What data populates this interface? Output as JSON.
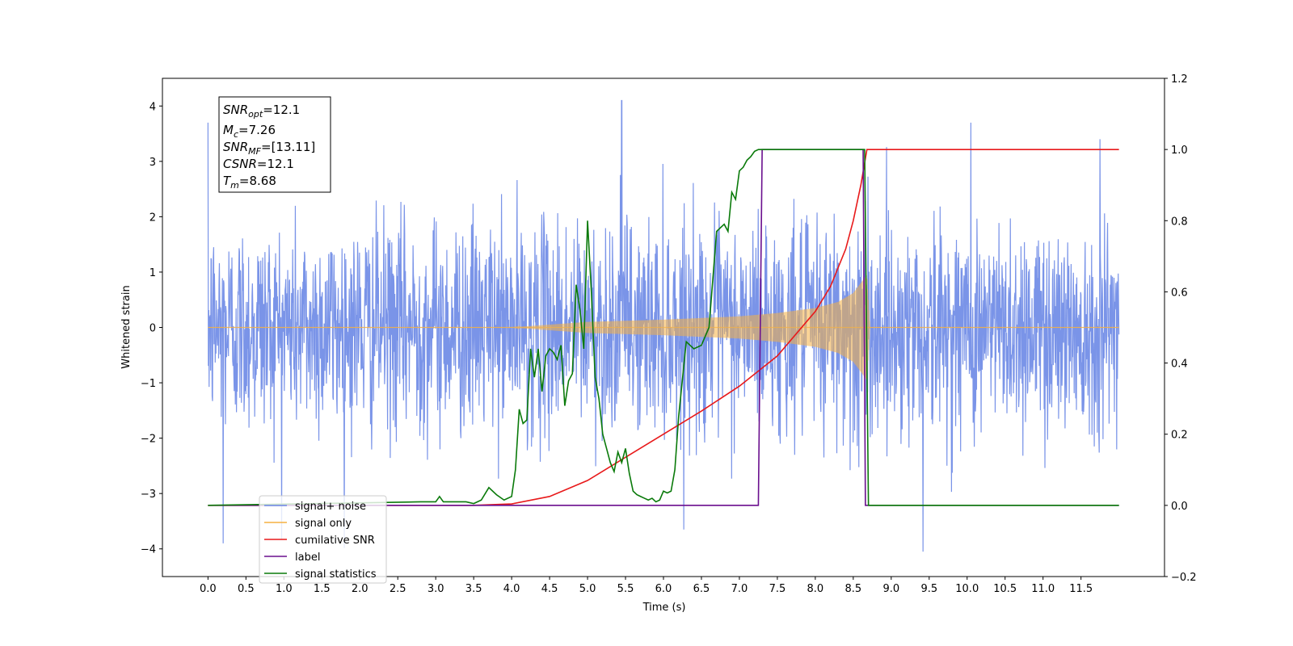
{
  "chart_data": {
    "type": "line",
    "xlabel": "Time (s)",
    "ylabel": "Whitened strain",
    "ylabel_right": "",
    "xlim": [
      -0.6,
      12.6
    ],
    "ylim": [
      -4.5,
      4.5
    ],
    "ylim_right": [
      -0.2,
      1.2
    ],
    "x_ticks": [
      "0.0",
      "0.5",
      "1.0",
      "1.5",
      "2.0",
      "2.5",
      "3.0",
      "3.5",
      "4.0",
      "4.5",
      "5.0",
      "5.5",
      "6.0",
      "6.5",
      "7.0",
      "7.5",
      "8.0",
      "8.5",
      "9.0",
      "9.5",
      "10.0",
      "10.5",
      "11.0",
      "11.5"
    ],
    "y_ticks_left": [
      "−4",
      "−3",
      "−2",
      "−1",
      "0",
      "1",
      "2",
      "3",
      "4"
    ],
    "y_ticks_right": [
      "−0.2",
      "0.0",
      "0.2",
      "0.4",
      "0.6",
      "0.8",
      "1.0",
      "1.2"
    ],
    "grid": false,
    "legend_position": "lower-left",
    "annotation": [
      {
        "main": "SNR",
        "sub": "opt",
        "rest": "=12.1"
      },
      {
        "main": "M",
        "sub": "c",
        "rest": "=7.26"
      },
      {
        "main": "SNR",
        "sub": "MF",
        "rest": "=[13.11]"
      },
      {
        "main": "CSNR",
        "sub": "",
        "rest": "=12.1"
      },
      {
        "main": "T",
        "sub": "m",
        "rest": "=8.68"
      }
    ],
    "series": [
      {
        "name": "signal+ noise",
        "color": "#6b88e6",
        "axis": "left",
        "description": "whitened noise with injected chirp, 0.0–12.0 s",
        "noise_amplitude_range": [
          -2.5,
          2.5
        ],
        "notable_peaks": [
          [
            0.0,
            3.7
          ],
          [
            0.2,
            -3.9
          ],
          [
            5.45,
            4.1
          ],
          [
            10.05,
            3.7
          ],
          [
            9.42,
            -4.05
          ],
          [
            11.75,
            3.4
          ]
        ]
      },
      {
        "name": "signal only",
        "color": "#f5b041",
        "axis": "left",
        "chirp_start": 4.0,
        "merger_time": 8.68,
        "envelope": [
          [
            4.0,
            0.0
          ],
          [
            5.0,
            0.1
          ],
          [
            6.0,
            0.14
          ],
          [
            7.0,
            0.2
          ],
          [
            7.5,
            0.26
          ],
          [
            8.0,
            0.35
          ],
          [
            8.3,
            0.46
          ],
          [
            8.5,
            0.62
          ],
          [
            8.6,
            0.8
          ],
          [
            8.68,
            0.95
          ],
          [
            8.72,
            0.0
          ]
        ]
      },
      {
        "name": "cumilative SNR",
        "color": "#e8191a",
        "axis": "right",
        "x": [
          0.0,
          3.5,
          4.0,
          4.5,
          5.0,
          5.5,
          6.0,
          6.5,
          7.0,
          7.5,
          8.0,
          8.2,
          8.4,
          8.5,
          8.6,
          8.68,
          9.0,
          10.0,
          11.0,
          12.0
        ],
        "y": [
          0.0,
          0.0,
          0.004,
          0.025,
          0.07,
          0.135,
          0.2,
          0.265,
          0.335,
          0.42,
          0.545,
          0.615,
          0.72,
          0.8,
          0.9,
          1.0,
          1.0,
          1.0,
          1.0,
          1.0
        ]
      },
      {
        "name": "label",
        "color": "#6a0f8e",
        "axis": "right",
        "x": [
          0.0,
          7.25,
          7.3,
          8.63,
          8.66,
          12.0
        ],
        "y": [
          0.0,
          0.0,
          1.0,
          1.0,
          0.0,
          0.0
        ]
      },
      {
        "name": "signal statistics",
        "color": "#0a7a0a",
        "axis": "right",
        "x": [
          0.0,
          2.8,
          2.9,
          3.0,
          3.05,
          3.1,
          3.3,
          3.4,
          3.5,
          3.6,
          3.7,
          3.8,
          3.9,
          4.0,
          4.05,
          4.1,
          4.15,
          4.2,
          4.25,
          4.3,
          4.35,
          4.4,
          4.45,
          4.5,
          4.55,
          4.6,
          4.65,
          4.7,
          4.75,
          4.8,
          4.85,
          4.9,
          4.95,
          5.0,
          5.05,
          5.1,
          5.15,
          5.2,
          5.25,
          5.3,
          5.35,
          5.4,
          5.45,
          5.5,
          5.55,
          5.6,
          5.65,
          5.7,
          5.75,
          5.8,
          5.85,
          5.9,
          5.95,
          6.0,
          6.05,
          6.1,
          6.15,
          6.2,
          6.3,
          6.4,
          6.5,
          6.6,
          6.7,
          6.8,
          6.85,
          6.9,
          6.95,
          7.0,
          7.05,
          7.1,
          7.15,
          7.2,
          7.25,
          7.3,
          7.35,
          7.4,
          7.45,
          7.5,
          7.55,
          7.6,
          7.65,
          7.7,
          7.8,
          8.0,
          8.3,
          8.6,
          8.65,
          8.7,
          8.75,
          12.0
        ],
        "y": [
          0.0,
          0.01,
          0.01,
          0.01,
          0.025,
          0.01,
          0.01,
          0.01,
          0.005,
          0.015,
          0.05,
          0.03,
          0.015,
          0.025,
          0.1,
          0.27,
          0.23,
          0.24,
          0.44,
          0.36,
          0.44,
          0.32,
          0.42,
          0.44,
          0.43,
          0.41,
          0.45,
          0.28,
          0.35,
          0.37,
          0.62,
          0.55,
          0.44,
          0.8,
          0.6,
          0.36,
          0.3,
          0.2,
          0.16,
          0.12,
          0.095,
          0.15,
          0.12,
          0.16,
          0.09,
          0.04,
          0.03,
          0.025,
          0.02,
          0.015,
          0.02,
          0.01,
          0.015,
          0.04,
          0.035,
          0.04,
          0.1,
          0.25,
          0.46,
          0.44,
          0.45,
          0.5,
          0.77,
          0.79,
          0.77,
          0.88,
          0.86,
          0.94,
          0.95,
          0.97,
          0.98,
          0.995,
          1.0,
          1.0,
          1.0,
          1.0,
          1.0,
          1.0,
          1.0,
          1.0,
          1.0,
          1.0,
          1.0,
          1.0,
          1.0,
          1.0,
          1.0,
          0.0,
          0.0,
          0.0
        ]
      }
    ],
    "legend_items": [
      "signal+ noise",
      "signal only",
      "cumilative SNR",
      "label",
      "signal statistics"
    ]
  }
}
